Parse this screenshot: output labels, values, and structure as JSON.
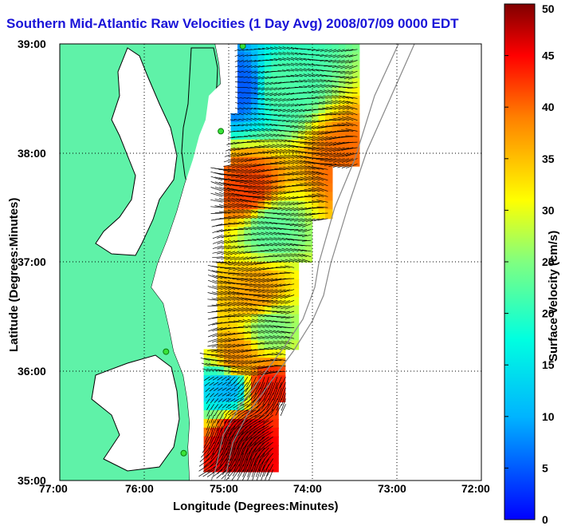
{
  "title": "Southern Mid-Atlantic Raw Velocities (1 Day Avg) 2008/07/09 0000 EDT",
  "xlabel": "Longitude (Degrees:Minutes)",
  "ylabel": "Latitude (Degrees:Minutes)",
  "colorbar_label": "Surface Velocity (cm/s)",
  "x_ticks": [
    "77:00",
    "76:00",
    "75:00",
    "74:00",
    "73:00",
    "72:00"
  ],
  "y_ticks": [
    "39:00",
    "38:00",
    "37:00",
    "36:00",
    "35:00"
  ],
  "colorbar_ticks": [
    "50",
    "45",
    "40",
    "35",
    "30",
    "25",
    "20",
    "15",
    "10",
    "5",
    "0"
  ],
  "colors": {
    "land": "#5ff2a8",
    "coast": "#000000",
    "title": "#1a14d8",
    "station": "#39e339"
  },
  "chart_data": {
    "type": "heatmap",
    "map_type": "surface current vector field with speed colormap",
    "xlim": [
      -77.0,
      -72.0
    ],
    "ylim": [
      35.0,
      39.0
    ],
    "color_range": [
      0,
      50
    ],
    "colormap": "jet",
    "grid": true,
    "stations": [
      {
        "lon": -74.83,
        "lat": 38.98
      },
      {
        "lon": -75.09,
        "lat": 38.2
      },
      {
        "lon": -75.74,
        "lat": 36.18
      },
      {
        "lon": -75.53,
        "lat": 35.25
      }
    ],
    "speed_regions": [
      {
        "lon": -74.85,
        "lat": 38.6,
        "speed": 5
      },
      {
        "lon": -74.4,
        "lat": 38.6,
        "speed": 22
      },
      {
        "lon": -73.6,
        "lat": 37.9,
        "speed": 40
      },
      {
        "lon": -74.75,
        "lat": 37.65,
        "speed": 42
      },
      {
        "lon": -74.5,
        "lat": 37.3,
        "speed": 23
      },
      {
        "lon": -74.65,
        "lat": 36.7,
        "speed": 37
      },
      {
        "lon": -74.5,
        "lat": 36.4,
        "speed": 25
      },
      {
        "lon": -74.9,
        "lat": 36.1,
        "speed": 38
      },
      {
        "lon": -75.0,
        "lat": 35.85,
        "speed": 10
      },
      {
        "lon": -74.55,
        "lat": 35.85,
        "speed": 44
      },
      {
        "lon": -74.85,
        "lat": 35.4,
        "speed": 48
      }
    ]
  }
}
